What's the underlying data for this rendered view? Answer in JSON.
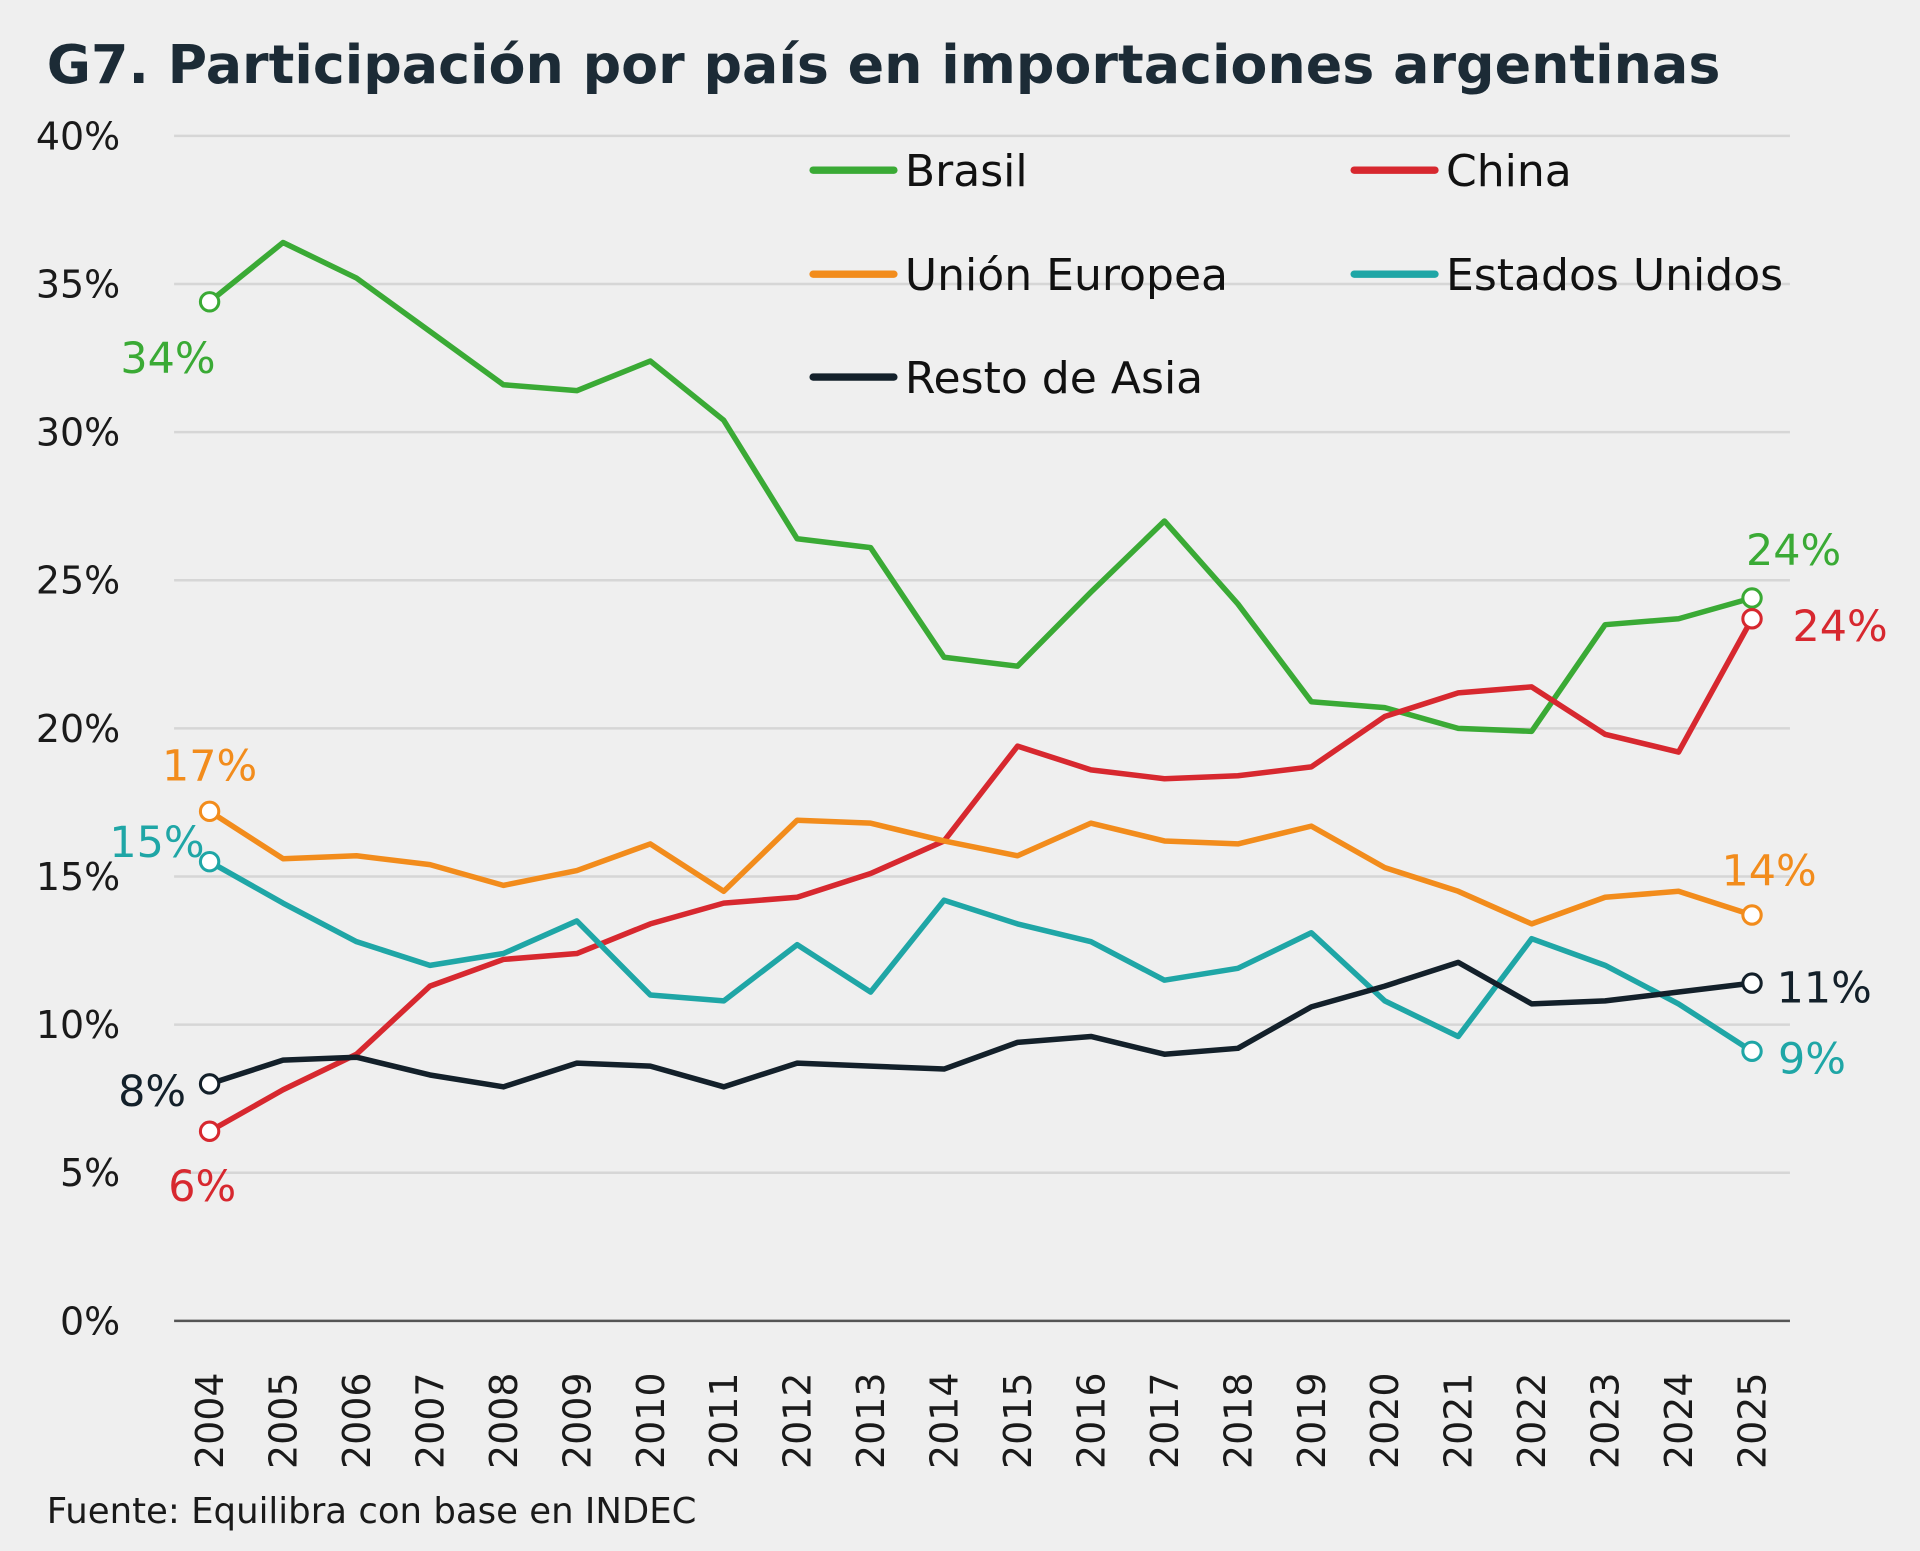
{
  "chart_data": {
    "type": "line",
    "title": "G7. Participación por país en importaciones argentinas",
    "source": "Fuente: Equilibra con base en INDEC",
    "xlabel": "",
    "ylabel": "",
    "ylim": [
      0,
      40
    ],
    "yticks": [
      "0%",
      "5%",
      "10%",
      "15%",
      "20%",
      "25%",
      "30%",
      "35%",
      "40%"
    ],
    "ytick_values": [
      0,
      5,
      10,
      15,
      20,
      25,
      30,
      35,
      40
    ],
    "grid": true,
    "legend_position": "top-right",
    "x": [
      "2004",
      "2005",
      "2006",
      "2007",
      "2008",
      "2009",
      "2010",
      "2011",
      "2012",
      "2013",
      "2014",
      "2015",
      "2016",
      "2017",
      "2018",
      "2019",
      "2020",
      "2021",
      "2022",
      "2023",
      "2024",
      "2025"
    ],
    "series": [
      {
        "name": "Brasil",
        "color": "#3aaa35",
        "start_label": "34%",
        "end_label": "24%",
        "values": [
          34.4,
          36.4,
          35.2,
          33.4,
          31.6,
          31.4,
          32.4,
          30.4,
          26.4,
          26.1,
          22.4,
          22.1,
          24.6,
          27.0,
          24.2,
          20.9,
          20.7,
          20.0,
          19.9,
          23.5,
          23.7,
          24.4
        ]
      },
      {
        "name": "China",
        "color": "#d7282f",
        "start_label": "6%",
        "end_label": "24%",
        "values": [
          6.4,
          7.8,
          9.0,
          11.3,
          12.2,
          12.4,
          13.4,
          14.1,
          14.3,
          15.1,
          16.2,
          19.4,
          18.6,
          18.3,
          18.4,
          18.7,
          20.4,
          21.2,
          21.4,
          19.8,
          19.2,
          23.7
        ]
      },
      {
        "name": "Unión Europea",
        "color": "#f28c1c",
        "start_label": "17%",
        "end_label": "14%",
        "values": [
          17.2,
          15.6,
          15.7,
          15.4,
          14.7,
          15.2,
          16.1,
          14.5,
          16.9,
          16.8,
          16.2,
          15.7,
          16.8,
          16.2,
          16.1,
          16.7,
          15.3,
          14.5,
          13.4,
          14.3,
          14.5,
          13.7
        ]
      },
      {
        "name": "Estados Unidos",
        "color": "#1fa6a6",
        "start_label": "15%",
        "end_label": "9%",
        "values": [
          15.5,
          14.1,
          12.8,
          12.0,
          12.4,
          13.5,
          11.0,
          10.8,
          12.7,
          11.1,
          14.2,
          13.4,
          12.8,
          11.5,
          11.9,
          13.1,
          10.8,
          9.6,
          12.9,
          12.0,
          10.7,
          9.1
        ]
      },
      {
        "name": "Resto de Asia",
        "color": "#13202a",
        "start_label": "8%",
        "end_label": "11%",
        "values": [
          8.0,
          8.8,
          8.9,
          8.3,
          7.9,
          8.7,
          8.6,
          7.9,
          8.7,
          8.6,
          8.5,
          9.4,
          9.6,
          9.0,
          9.2,
          10.6,
          11.3,
          12.1,
          10.7,
          10.8,
          11.1,
          11.4
        ]
      }
    ]
  }
}
